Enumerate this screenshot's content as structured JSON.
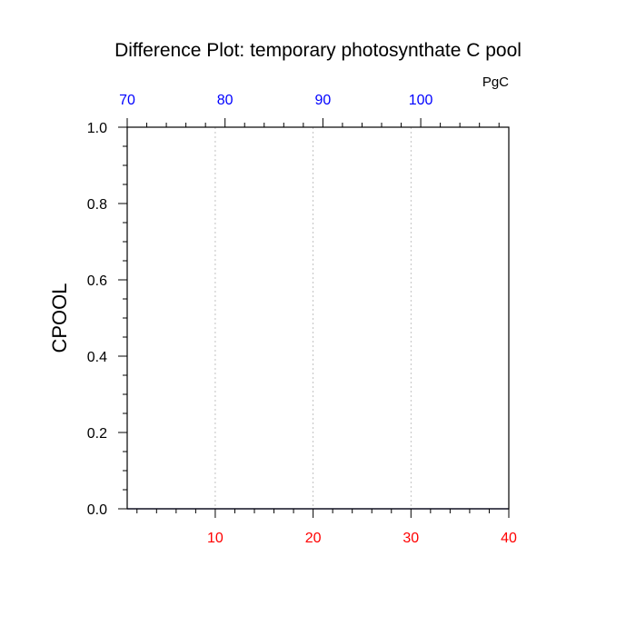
{
  "chart_data": {
    "type": "line",
    "title": "Difference Plot: temporary photosynthate C pool",
    "ylabel": "CPOOL",
    "top_axis_unit": "PgC",
    "bottom_axis": {
      "range": [
        1,
        40
      ],
      "ticks": [
        10,
        20,
        30,
        40
      ],
      "tick_labels": [
        "10",
        "20",
        "30",
        "40"
      ],
      "color": "#ff0000"
    },
    "top_axis": {
      "range": [
        70,
        109
      ],
      "ticks": [
        70,
        80,
        90,
        100
      ],
      "tick_labels": [
        "70",
        "80",
        "90",
        "100"
      ],
      "color": "#0000ff"
    },
    "left_axis": {
      "range": [
        0.0,
        1.0
      ],
      "ticks": [
        0.0,
        0.2,
        0.4,
        0.6,
        0.8,
        1.0
      ],
      "tick_labels": [
        "0.0",
        "0.2",
        "0.4",
        "0.6",
        "0.8",
        "1.0"
      ],
      "color": "#000000"
    },
    "grid": "vertical dashed at bottom-axis major ticks",
    "series": []
  }
}
